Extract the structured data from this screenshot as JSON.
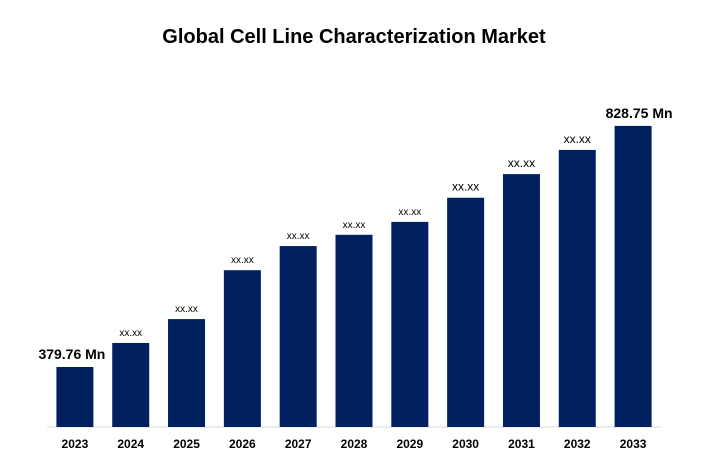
{
  "chart_data": {
    "type": "bar",
    "title": "Global Cell Line Characterization Market",
    "categories": [
      "2023",
      "2024",
      "2025",
      "2026",
      "2027",
      "2028",
      "2029",
      "2030",
      "2031",
      "2032",
      "2033"
    ],
    "values": [
      379.76,
      424.5,
      469,
      560,
      605,
      626,
      650,
      695,
      739,
      784,
      828.75
    ],
    "value_labels": [
      "379.76 Mn",
      "xx.xx",
      "xx.xx",
      "xx.xx",
      "xx.xx",
      "xx.xx",
      "xx.xx",
      "xx.xx",
      "xx.xx",
      "xx.xx",
      "828.75  Mn"
    ],
    "color": "#002060",
    "ylim": [
      268,
      877
    ]
  }
}
